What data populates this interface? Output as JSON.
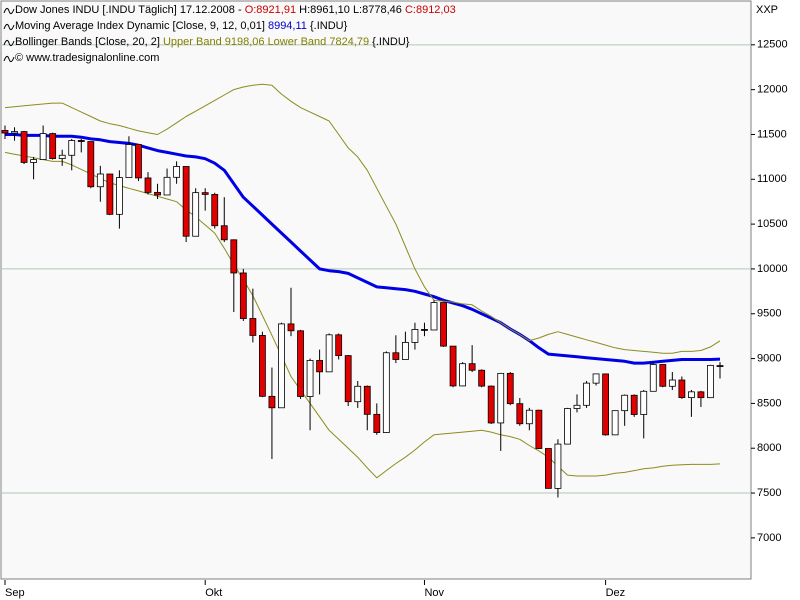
{
  "chart_data": {
    "type": "candlestick",
    "corner_label": "XXP",
    "header": [
      [
        {
          "text": "Dow Jones INDU [.INDU  Täglich] 17.12.2008 -",
          "color": "#000000"
        },
        {
          "text": "O:8921,91",
          "color": "#cc0000"
        },
        {
          "text": "H:8961,10 L:8778,46",
          "color": "#000000"
        },
        {
          "text": "C:8912,03",
          "color": "#cc0000"
        }
      ],
      [
        {
          "text": "Moving Average Index Dynamic [Close, 9, 12, 0,01]",
          "color": "#000000"
        },
        {
          "text": "8994,11",
          "color": "#0000cc"
        },
        {
          "text": "{.INDU}",
          "color": "#000000"
        }
      ],
      [
        {
          "text": "Bollinger Bands [Close, 20, 2]",
          "color": "#000000"
        },
        {
          "text": "Upper Band 9198,06 Lower Band 7824,79",
          "color": "#808000"
        },
        {
          "text": "{.INDU}",
          "color": "#000000"
        }
      ],
      [
        {
          "text": "© www.tradesignalonline.com",
          "color": "#000000"
        }
      ]
    ],
    "categories": [
      "Sep",
      null,
      null,
      null,
      null,
      null,
      null,
      null,
      null,
      null,
      null,
      null,
      null,
      null,
      null,
      null,
      null,
      null,
      null,
      null,
      null,
      "Okt",
      null,
      null,
      null,
      null,
      null,
      null,
      null,
      null,
      null,
      null,
      null,
      null,
      null,
      null,
      null,
      null,
      null,
      null,
      null,
      null,
      null,
      null,
      "Nov",
      null,
      null,
      null,
      null,
      null,
      null,
      null,
      null,
      null,
      null,
      null,
      null,
      null,
      null,
      null,
      null,
      null,
      null,
      "Dez",
      null,
      null,
      null,
      null,
      null,
      null,
      null,
      null,
      null,
      null,
      null,
      null
    ],
    "up_color": "#ffffff",
    "down_color": "#e00000",
    "open": [
      11545,
      11516,
      11532,
      11188,
      11220,
      11510,
      11231,
      11268,
      11433,
      11421,
      10917,
      11059,
      10609,
      11019,
      11388,
      11015,
      10854,
      10825,
      11022,
      11143,
      10365,
      10851,
      10831,
      10482,
      10325,
      9955,
      9447,
      9258,
      8579,
      8451,
      9387,
      9310,
      8577,
      8979,
      8852,
      9265,
      9033,
      8519,
      8691,
      8378,
      8175,
      9065,
      8990,
      9180,
      9325,
      9319,
      9625,
      9139,
      8695,
      8943,
      8870,
      8693,
      8282,
      8835,
      8497,
      8273,
      8424,
      7997,
      7552,
      8046,
      8443,
      8479,
      8726,
      8829,
      8149,
      8419,
      8591,
      8376,
      8635,
      8934,
      8691,
      8761,
      8565,
      8629,
      8564,
      8921.91
    ],
    "high": [
      11600,
      11580,
      11540,
      11250,
      11600,
      11520,
      11330,
      11450,
      11450,
      11421,
      11150,
      11060,
      11100,
      11480,
      11390,
      11080,
      10950,
      11120,
      11200,
      11143,
      10900,
      10900,
      10850,
      10800,
      10330,
      10000,
      9780,
      9300,
      8900,
      9400,
      9790,
      9320,
      9000,
      9100,
      9280,
      9280,
      9040,
      8750,
      8700,
      8500,
      9080,
      9260,
      9300,
      9400,
      9400,
      9650,
      9625,
      9140,
      8960,
      9150,
      8880,
      8700,
      8840,
      8850,
      8560,
      8450,
      8430,
      8000,
      8100,
      8450,
      8600,
      8750,
      8830,
      8830,
      8420,
      8600,
      8600,
      8650,
      8960,
      8940,
      8850,
      8800,
      8650,
      8640,
      8930,
      8961.1
    ],
    "low": [
      11450,
      11430,
      11170,
      11000,
      11220,
      11220,
      11150,
      11100,
      11300,
      10900,
      10750,
      10600,
      10450,
      11019,
      10980,
      10830,
      10780,
      10825,
      10950,
      10300,
      10365,
      10650,
      10450,
      10300,
      9520,
      9420,
      9180,
      8570,
      7880,
      8451,
      9250,
      8550,
      8200,
      8600,
      8852,
      8990,
      8470,
      8450,
      8200,
      8150,
      8170,
      8950,
      8990,
      9100,
      9250,
      9319,
      9130,
      8680,
      8690,
      8850,
      8680,
      8270,
      7970,
      8480,
      8250,
      8200,
      7990,
      7550,
      7450,
      8046,
      8400,
      8450,
      8700,
      8140,
      8149,
      8250,
      8350,
      8110,
      8635,
      8680,
      8650,
      8550,
      8350,
      8460,
      8560,
      8778.46
    ],
    "close": [
      11516,
      11532,
      11188,
      11220,
      11510,
      11231,
      11268,
      11433,
      11421,
      10917,
      11059,
      10609,
      11019,
      11388,
      11015,
      10854,
      10825,
      11022,
      11143,
      10365,
      10851,
      10831,
      10482,
      10325,
      9955,
      9447,
      9258,
      8579,
      8451,
      9387,
      9310,
      8577,
      8979,
      8852,
      9265,
      9033,
      8519,
      8691,
      8378,
      8175,
      9065,
      8990,
      9180,
      9325,
      9319,
      9625,
      9139,
      8695,
      8943,
      8870,
      8693,
      8282,
      8835,
      8497,
      8273,
      8424,
      7997,
      7552,
      8046,
      8443,
      8479,
      8726,
      8829,
      8149,
      8419,
      8591,
      8376,
      8635,
      8934,
      8691,
      8761,
      8565,
      8629,
      8564,
      8924,
      8912.03
    ],
    "series": [
      {
        "name": "Moving Average Index Dynamic",
        "color": "#0000e6",
        "width": 3,
        "values": [
          11500,
          11500,
          11490,
          11490,
          11490,
          11480,
          11480,
          11480,
          11470,
          11450,
          11440,
          11420,
          11410,
          11400,
          11380,
          11350,
          11320,
          11300,
          11280,
          11260,
          11250,
          11230,
          11180,
          11100,
          10950,
          10800,
          10700,
          10600,
          10500,
          10400,
          10300,
          10200,
          10100,
          10000,
          9980,
          9970,
          9950,
          9900,
          9850,
          9800,
          9790,
          9780,
          9770,
          9750,
          9720,
          9690,
          9650,
          9620,
          9590,
          9550,
          9500,
          9450,
          9400,
          9330,
          9270,
          9200,
          9120,
          9050,
          9040,
          9030,
          9020,
          9010,
          9000,
          8990,
          8980,
          8970,
          8950,
          8950,
          8960,
          8970,
          8980,
          8990,
          8990,
          8990,
          8990,
          8994.11
        ]
      },
      {
        "name": "Upper Band",
        "color": "#8c8c1e",
        "width": 1,
        "values": [
          11800,
          11810,
          11820,
          11830,
          11840,
          11850,
          11850,
          11800,
          11750,
          11700,
          11650,
          11620,
          11600,
          11570,
          11540,
          11520,
          11500,
          11560,
          11630,
          11700,
          11760,
          11820,
          11880,
          11940,
          12000,
          12030,
          12050,
          12060,
          12050,
          11950,
          11870,
          11800,
          11750,
          11700,
          11650,
          11500,
          11350,
          11250,
          11100,
          10900,
          10700,
          10500,
          10250,
          10000,
          9800,
          9650,
          9640,
          9630,
          9610,
          9600,
          9530,
          9470,
          9400,
          9330,
          9270,
          9200,
          9230,
          9270,
          9300,
          9270,
          9240,
          9210,
          9180,
          9150,
          9120,
          9100,
          9090,
          9080,
          9070,
          9060,
          9060,
          9080,
          9080,
          9090,
          9130,
          9198.06
        ]
      },
      {
        "name": "Lower Band",
        "color": "#8c8c1e",
        "width": 1,
        "values": [
          11300,
          11280,
          11260,
          11240,
          11220,
          11200,
          11200,
          11160,
          11110,
          11060,
          11010,
          10960,
          10930,
          10900,
          10870,
          10840,
          10810,
          10780,
          10750,
          10660,
          10580,
          10490,
          10400,
          10230,
          10050,
          9880,
          9700,
          9480,
          9260,
          9030,
          8800,
          8650,
          8500,
          8350,
          8200,
          8100,
          8000,
          7900,
          7780,
          7670,
          7750,
          7830,
          7900,
          7980,
          8070,
          8150,
          8160,
          8170,
          8180,
          8190,
          8200,
          8180,
          8150,
          8130,
          8100,
          8030,
          7970,
          7900,
          7800,
          7700,
          7690,
          7690,
          7690,
          7700,
          7720,
          7730,
          7750,
          7770,
          7780,
          7800,
          7810,
          7815,
          7820,
          7820,
          7820,
          7824.79
        ]
      }
    ],
    "ylim": [
      6530,
      13000
    ],
    "yticks": [
      7000,
      7500,
      8000,
      8500,
      9000,
      9500,
      10000,
      10500,
      11000,
      11500,
      12000,
      12500
    ],
    "gridlines": [
      7500,
      10000,
      12500
    ],
    "grid_color": "#b4c8b4"
  }
}
